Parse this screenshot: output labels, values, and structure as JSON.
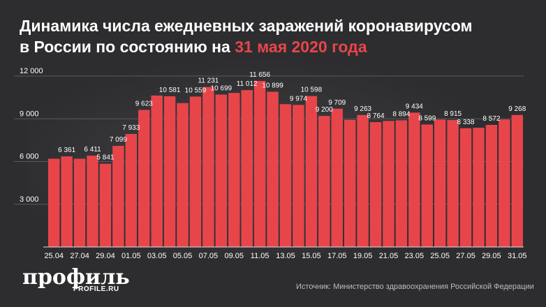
{
  "title": {
    "line1": "Динамика числа ежедневных заражений коронавирусом",
    "line2_prefix": "в России по состоянию на ",
    "line2_accent": "31 мая 2020 года"
  },
  "logo": {
    "main": "профиль",
    "sub": "PROFILE.RU"
  },
  "source": "Источник: Министерство здравоохранения Российской Федерации",
  "colors": {
    "background": "#2d2d2f",
    "bar": "#e8454b",
    "text": "#ffffff",
    "accent": "#e8454b"
  },
  "chart_data": {
    "type": "bar",
    "x": [
      "25.04",
      "26.04",
      "27.04",
      "28.04",
      "29.04",
      "30.04",
      "01.05",
      "02.05",
      "03.05",
      "04.05",
      "05.05",
      "06.05",
      "07.05",
      "08.05",
      "09.05",
      "10.05",
      "11.05",
      "12.05",
      "13.05",
      "14.05",
      "15.05",
      "16.05",
      "17.05",
      "18.05",
      "19.05",
      "20.05",
      "21.05",
      "22.05",
      "23.05",
      "24.05",
      "25.05",
      "26.05",
      "27.05",
      "28.05",
      "29.05",
      "30.05",
      "31.05"
    ],
    "xtick_labels": [
      "25.04",
      "",
      "27.04",
      "",
      "29.04",
      "",
      "01.05",
      "",
      "03.05",
      "",
      "05.05",
      "",
      "07.05",
      "",
      "09.05",
      "",
      "11.05",
      "",
      "13.05",
      "",
      "15.05",
      "",
      "17.05",
      "",
      "19.05",
      "",
      "21.05",
      "",
      "23.05",
      "",
      "25.05",
      "",
      "27.05",
      "",
      "29.05",
      "",
      "31.05"
    ],
    "values": [
      6198,
      6361,
      6198,
      6411,
      5841,
      7099,
      7933,
      9623,
      10633,
      10581,
      10102,
      10559,
      11231,
      10699,
      10817,
      11012,
      11656,
      10899,
      10028,
      9974,
      10598,
      9200,
      9709,
      8926,
      9263,
      8764,
      8849,
      8894,
      9434,
      8599,
      8946,
      8915,
      8338,
      8371,
      8572,
      8952,
      9268
    ],
    "data_labels": [
      "",
      "6 361",
      "",
      "6 411",
      "5 841",
      "7 099",
      "7 933",
      "9 623",
      "",
      "10 581",
      "",
      "10 559",
      "11 231",
      "10 699",
      "",
      "11 012",
      "11 656",
      "10 899",
      "",
      "9 974",
      "10 598",
      "9 200",
      "9 709",
      "",
      "9 263",
      "8 764",
      "",
      "8 894",
      "9 434",
      "8 599",
      "",
      "8 915",
      "8 338",
      "",
      "8 572",
      "",
      "9 268"
    ],
    "yticks": [
      3000,
      6000,
      9000,
      12000
    ],
    "ytick_labels": [
      "3 000",
      "6 000",
      "9 000",
      "12 000"
    ],
    "ylim": [
      0,
      12000
    ],
    "grid": true
  }
}
